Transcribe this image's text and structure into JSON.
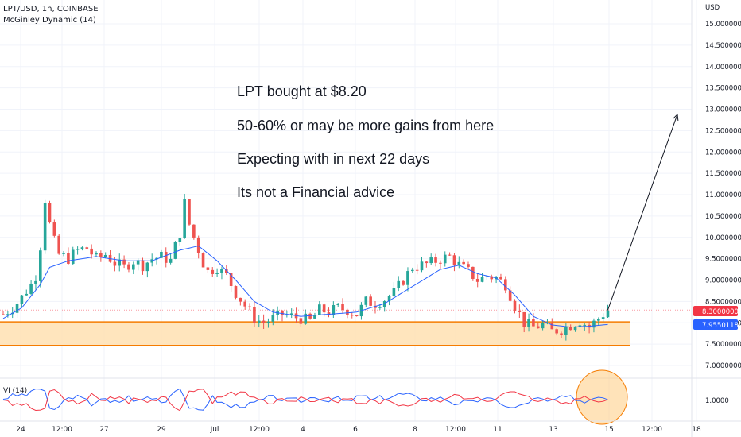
{
  "header": {
    "symbol": "LPT/USD, 1h, COINBASE",
    "indicator": "McGinley Dynamic (14)"
  },
  "annotations": [
    "LPT bought at $8.20",
    "50-60% or may be more gains from here",
    "Expecting with in next 22 days",
    "Its not a Financial advice"
  ],
  "currency_label": "USD",
  "price_badges": {
    "last": "8.30000000",
    "mcginley": "7.95501180"
  },
  "vi_panel": {
    "label": "VI (14)",
    "tick": "1.0000"
  },
  "colors": {
    "up": "#26a69a",
    "down": "#ef5350",
    "mcginley": "#2962ff",
    "zone_fill": "#ffe0b2",
    "zone_border": "#f57c00",
    "badge_red": "#f23645",
    "badge_blue": "#2962ff",
    "vi_plus": "#2962ff",
    "vi_minus": "#f23645"
  },
  "chart_data": {
    "type": "candlestick",
    "y_axis_ticks": [
      "15.00000000",
      "14.50000000",
      "14.00000000",
      "13.50000000",
      "13.00000000",
      "12.50000000",
      "12.00000000",
      "11.50000000",
      "11.00000000",
      "10.50000000",
      "10.00000000",
      "9.50000000",
      "9.00000000",
      "8.50000000",
      "8.00000000",
      "7.50000000",
      "7.00000000"
    ],
    "ylim": [
      6.6,
      15.25
    ],
    "x_axis_ticks": [
      "24",
      "12:00",
      "27",
      "29",
      "Jul",
      "12:00",
      "4",
      "6",
      "8",
      "12:00",
      "11",
      "13",
      "15",
      "12:00",
      "18"
    ],
    "support_zone": [
      7.47,
      8.02
    ],
    "last_price": 8.3,
    "target_price": 12.88,
    "price_path": [
      [
        0,
        8.2
      ],
      [
        2,
        8.35
      ],
      [
        4,
        8.6
      ],
      [
        6,
        8.9
      ],
      [
        7,
        9.1
      ],
      [
        8,
        9.8
      ],
      [
        9,
        10.9
      ],
      [
        10,
        10.3
      ],
      [
        11,
        9.9
      ],
      [
        12,
        9.6
      ],
      [
        14,
        9.5
      ],
      [
        16,
        9.7
      ],
      [
        18,
        9.75
      ],
      [
        20,
        9.5
      ],
      [
        22,
        9.6
      ],
      [
        24,
        9.4
      ],
      [
        26,
        9.3
      ],
      [
        28,
        9.45
      ],
      [
        30,
        9.35
      ],
      [
        32,
        9.5
      ],
      [
        34,
        9.55
      ],
      [
        36,
        9.45
      ],
      [
        37,
        9.8
      ],
      [
        38,
        10.1
      ],
      [
        39,
        10.8
      ],
      [
        40,
        10.3
      ],
      [
        41,
        10.0
      ],
      [
        42,
        9.7
      ],
      [
        43,
        9.4
      ],
      [
        44,
        9.2
      ],
      [
        46,
        9.3
      ],
      [
        48,
        9.1
      ],
      [
        50,
        8.7
      ],
      [
        52,
        8.4
      ],
      [
        54,
        8.1
      ],
      [
        56,
        8.0
      ],
      [
        58,
        8.1
      ],
      [
        60,
        8.2
      ],
      [
        62,
        8.15
      ],
      [
        64,
        8.1
      ],
      [
        66,
        8.05
      ],
      [
        68,
        8.3
      ],
      [
        70,
        8.25
      ],
      [
        72,
        8.35
      ],
      [
        74,
        8.3
      ],
      [
        76,
        8.2
      ],
      [
        78,
        8.5
      ],
      [
        80,
        8.45
      ],
      [
        82,
        8.55
      ],
      [
        84,
        8.7
      ],
      [
        86,
        9.0
      ],
      [
        88,
        9.3
      ],
      [
        90,
        9.35
      ],
      [
        92,
        9.4
      ],
      [
        94,
        9.5
      ],
      [
        96,
        9.55
      ],
      [
        98,
        9.35
      ],
      [
        100,
        9.2
      ],
      [
        102,
        9.0
      ],
      [
        104,
        9.1
      ],
      [
        106,
        9.05
      ],
      [
        108,
        8.9
      ],
      [
        110,
        8.4
      ],
      [
        112,
        8.0
      ],
      [
        114,
        7.9
      ],
      [
        116,
        7.95
      ],
      [
        118,
        7.8
      ],
      [
        120,
        7.85
      ],
      [
        122,
        7.95
      ],
      [
        124,
        8.05
      ],
      [
        126,
        7.9
      ],
      [
        128,
        8.1
      ],
      [
        130,
        8.3
      ]
    ],
    "mcginley_path": [
      [
        0,
        8.1
      ],
      [
        4,
        8.35
      ],
      [
        8,
        8.9
      ],
      [
        10,
        9.3
      ],
      [
        14,
        9.45
      ],
      [
        20,
        9.55
      ],
      [
        26,
        9.45
      ],
      [
        32,
        9.45
      ],
      [
        38,
        9.7
      ],
      [
        42,
        9.8
      ],
      [
        46,
        9.45
      ],
      [
        50,
        9.0
      ],
      [
        54,
        8.5
      ],
      [
        58,
        8.25
      ],
      [
        64,
        8.15
      ],
      [
        70,
        8.2
      ],
      [
        76,
        8.25
      ],
      [
        82,
        8.45
      ],
      [
        88,
        8.85
      ],
      [
        94,
        9.25
      ],
      [
        98,
        9.35
      ],
      [
        102,
        9.15
      ],
      [
        106,
        9.05
      ],
      [
        110,
        8.65
      ],
      [
        114,
        8.15
      ],
      [
        118,
        7.95
      ],
      [
        122,
        7.9
      ],
      [
        126,
        7.92
      ],
      [
        130,
        7.96
      ]
    ]
  }
}
